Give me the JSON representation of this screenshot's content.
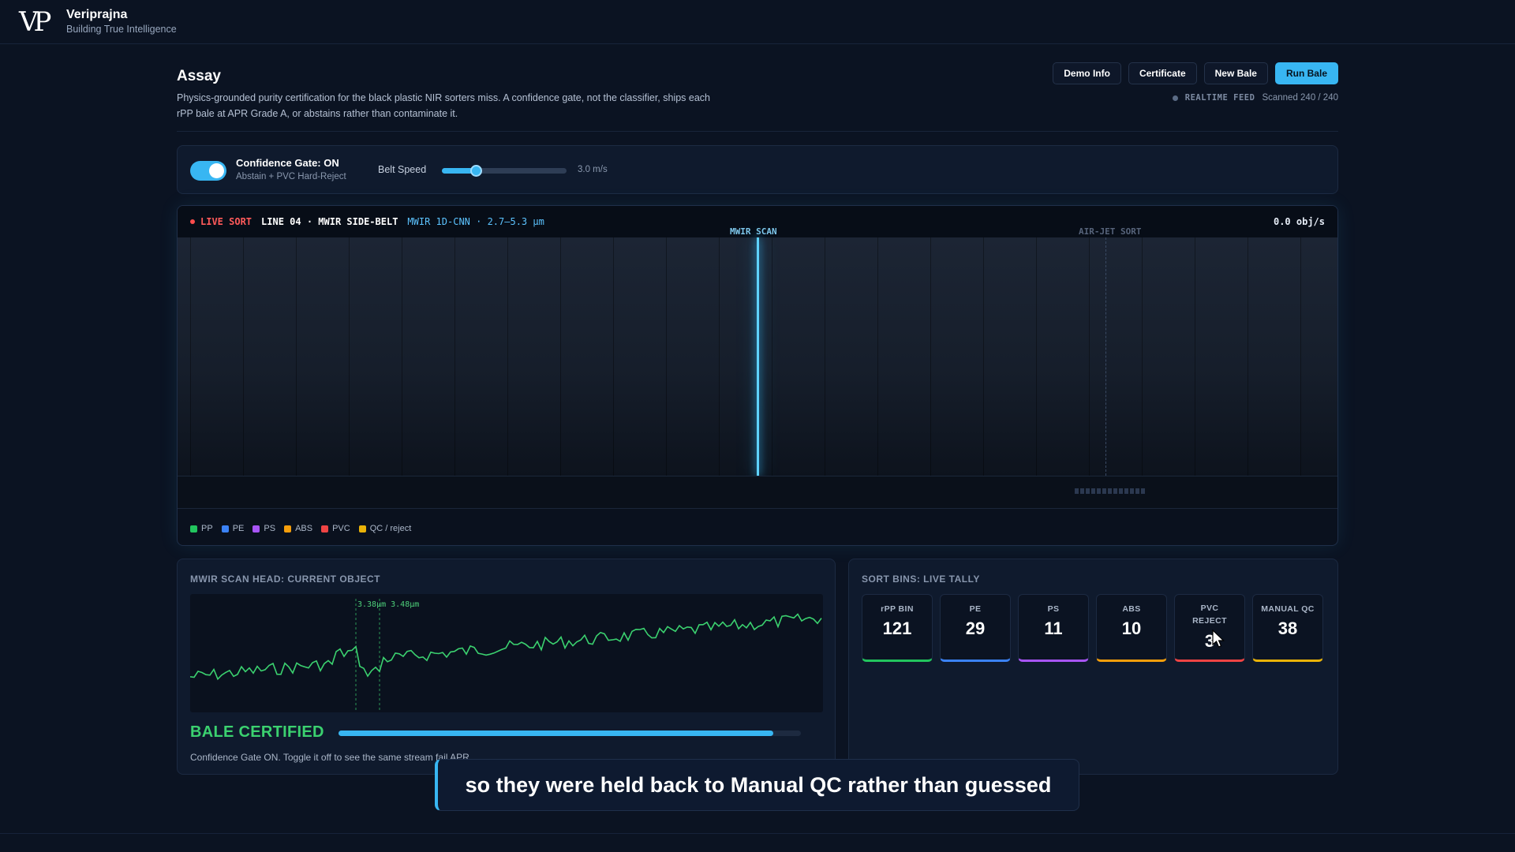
{
  "brand": {
    "name": "Veriprajna",
    "tagline": "Building True Intelligence",
    "logo_text": "VP"
  },
  "header": {
    "title": "Assay",
    "description": "Physics-grounded purity certification for the black plastic NIR sorters miss. A confidence gate, not the classifier, ships each rPP bale at APR Grade A, or abstains rather than contaminate it.",
    "buttons": {
      "demo_info": "Demo Info",
      "certificate": "Certificate",
      "new_bale": "New Bale",
      "run_bale": "Run Bale"
    },
    "feed_label": "REALTIME FEED",
    "scanned": "Scanned 240 / 240"
  },
  "controls": {
    "gate_label": "Confidence Gate: ON",
    "gate_sub": "Abstain + PVC Hard-Reject",
    "gate_on": true,
    "speed_label": "Belt Speed",
    "speed_value": "3.0 m/s",
    "speed_fraction": 0.27
  },
  "live_sort": {
    "live_label": "LIVE SORT",
    "line_label": "LINE 04 · MWIR SIDE-BELT",
    "model_label": "MWIR 1D-CNN · 2.7–5.3 µm",
    "rate": "0.0 obj/s",
    "scan_label": "MWIR SCAN",
    "airjet_label": "AIR-JET SORT",
    "legend": [
      {
        "label": "PP",
        "color": "#22c55e"
      },
      {
        "label": "PE",
        "color": "#3b82f6"
      },
      {
        "label": "PS",
        "color": "#a855f7"
      },
      {
        "label": "ABS",
        "color": "#f59e0b"
      },
      {
        "label": "PVC",
        "color": "#ef4444"
      },
      {
        "label": "QC / reject",
        "color": "#eab308"
      }
    ]
  },
  "scan_head": {
    "title": "MWIR SCAN HEAD: CURRENT OBJECT",
    "marker_label": "3.38µm 3.48µm",
    "status": "BALE CERTIFIED",
    "status_color": "#3bd16f",
    "progress": 0.94,
    "note": "Confidence Gate ON. Toggle it off to see the same stream fail APR."
  },
  "bins": {
    "title": "SORT BINS: LIVE TALLY",
    "items": [
      {
        "label": "rPP BIN",
        "count": "121",
        "color": "#22c55e"
      },
      {
        "label": "PE",
        "count": "29",
        "color": "#3b82f6"
      },
      {
        "label": "PS",
        "count": "11",
        "color": "#a855f7"
      },
      {
        "label": "ABS",
        "count": "10",
        "color": "#f59e0b"
      },
      {
        "label": "PVC REJECT",
        "count": "3",
        "color": "#ef4444"
      },
      {
        "label": "MANUAL QC",
        "count": "38",
        "color": "#eab308"
      }
    ]
  },
  "caption": "so they were held back to Manual QC rather than guessed"
}
